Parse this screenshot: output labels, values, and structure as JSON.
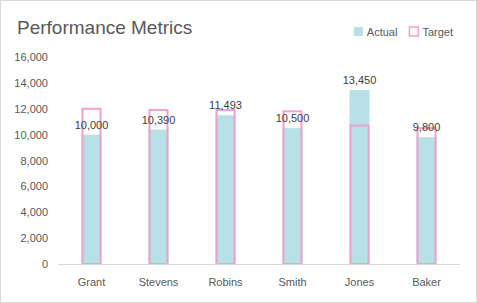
{
  "chart_data": {
    "type": "bar",
    "title": "Performance Metrics",
    "categories": [
      "Grant",
      "Stevens",
      "Robins",
      "Smith",
      "Jones",
      "Baker"
    ],
    "series": [
      {
        "name": "Actual",
        "color": "#b7e1e6",
        "values": [
          10000,
          10390,
          11493,
          10500,
          13450,
          9800
        ],
        "data_labels": true,
        "value_labels": [
          "10,000",
          "10,390",
          "11,493",
          "10,500",
          "13,450",
          "9,800"
        ]
      },
      {
        "name": "Target",
        "color": "#f0a0cc",
        "values": [
          12000,
          11900,
          11900,
          11800,
          10700,
          10500
        ]
      }
    ],
    "ylim": [
      0,
      16000
    ],
    "yticks": [
      0,
      {
        "value": 2000,
        "label": "2,000"
      },
      {
        "value": 4000,
        "label": "4,000"
      },
      {
        "value": 6000,
        "label": "6,000"
      },
      {
        "value": 8000,
        "label": "8,000"
      },
      {
        "value": 10000,
        "label": "10,000"
      },
      {
        "value": 12000,
        "label": "12,000"
      },
      {
        "value": 14000,
        "label": "14,000"
      },
      {
        "value": 16000,
        "label": "16,000"
      }
    ],
    "grid": false,
    "legend": "top-right"
  }
}
